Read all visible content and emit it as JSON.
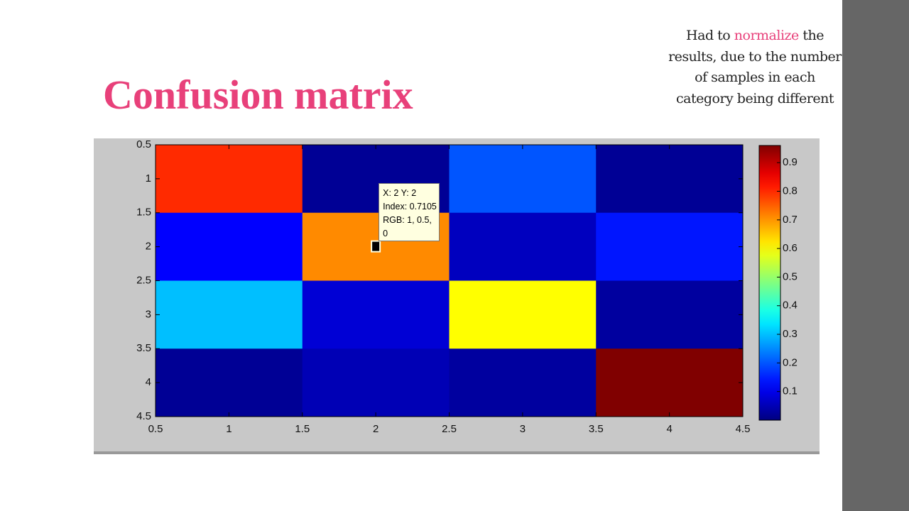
{
  "title": "Confusion matrix",
  "note": {
    "parts": [
      "Had to ",
      "normalize",
      " the results, due to the number of samples in each category being different"
    ]
  },
  "chart_data": {
    "type": "heatmap",
    "colormap": "jet",
    "x": [
      1,
      2,
      3,
      4
    ],
    "y": [
      1,
      2,
      3,
      4
    ],
    "values": [
      [
        0.8,
        0.02,
        0.2,
        0.02
      ],
      [
        0.12,
        0.7105,
        0.06,
        0.14
      ],
      [
        0.3,
        0.08,
        0.6,
        0.03
      ],
      [
        0.02,
        0.05,
        0.03,
        0.96
      ]
    ],
    "xlim": [
      0.5,
      4.5
    ],
    "xticks": [
      0.5,
      1,
      1.5,
      2,
      2.5,
      3,
      3.5,
      4,
      4.5
    ],
    "ylim": [
      0.5,
      4.5
    ],
    "yticks": [
      0.5,
      1,
      1.5,
      2,
      2.5,
      3,
      3.5,
      4,
      4.5
    ],
    "y_reversed": true,
    "clim": [
      0,
      0.96
    ],
    "cticks": [
      0.1,
      0.2,
      0.3,
      0.4,
      0.5,
      0.6,
      0.7,
      0.8,
      0.9
    ],
    "datatip": {
      "x": 2,
      "y": 2,
      "lines": [
        "X: 2 Y: 2",
        "Index: 0.7105",
        "RGB: 1, 0.5, 0"
      ]
    }
  }
}
